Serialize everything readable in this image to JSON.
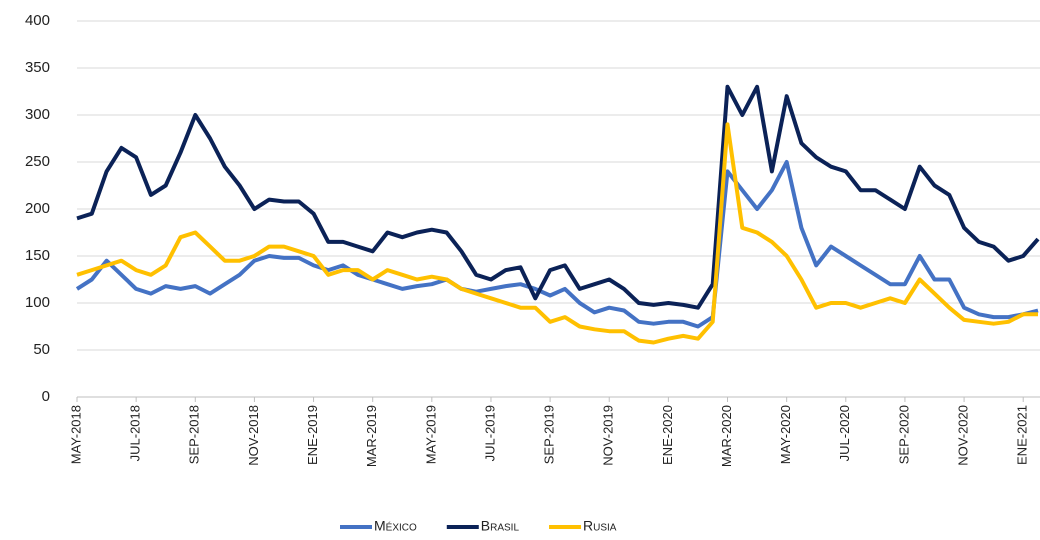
{
  "chart_data": {
    "type": "line",
    "categories": [
      "MAY-2018",
      null,
      null,
      null,
      "JUL-2018",
      null,
      null,
      null,
      "SEP-2018",
      null,
      null,
      null,
      "NOV-2018",
      null,
      null,
      null,
      "ENE-2019",
      null,
      null,
      null,
      "MAR-2019",
      null,
      null,
      null,
      "MAY-2019",
      null,
      null,
      null,
      "JUL-2019",
      null,
      null,
      null,
      "SEP-2019",
      null,
      null,
      null,
      "NOV-2019",
      null,
      null,
      null,
      "ENE-2020",
      null,
      null,
      null,
      "MAR-2020",
      null,
      null,
      null,
      "MAY-2020",
      null,
      null,
      null,
      "JUL-2020",
      null,
      null,
      null,
      "SEP-2020",
      null,
      null,
      null,
      "NOV-2020",
      null,
      null,
      null,
      "ENE-2021",
      null
    ],
    "series": [
      {
        "name": "México",
        "color": "#4472c4",
        "values": [
          115,
          125,
          145,
          130,
          115,
          110,
          118,
          115,
          118,
          110,
          120,
          130,
          145,
          150,
          148,
          148,
          140,
          135,
          140,
          130,
          125,
          120,
          115,
          118,
          120,
          125,
          115,
          112,
          115,
          118,
          120,
          115,
          108,
          115,
          100,
          90,
          95,
          92,
          80,
          78,
          80,
          80,
          75,
          85,
          240,
          220,
          200,
          220,
          250,
          180,
          140,
          160,
          150,
          140,
          130,
          120,
          120,
          150,
          125,
          125,
          95,
          88,
          85,
          85,
          88,
          92
        ]
      },
      {
        "name": "Brasil",
        "color": "#0b2257",
        "values": [
          190,
          195,
          240,
          265,
          255,
          215,
          225,
          260,
          300,
          275,
          245,
          225,
          200,
          210,
          208,
          208,
          195,
          165,
          165,
          160,
          155,
          175,
          170,
          175,
          178,
          175,
          155,
          130,
          125,
          135,
          138,
          105,
          135,
          140,
          115,
          120,
          125,
          115,
          100,
          98,
          100,
          98,
          95,
          120,
          330,
          300,
          330,
          240,
          320,
          270,
          255,
          245,
          240,
          220,
          220,
          210,
          200,
          245,
          225,
          215,
          180,
          165,
          160,
          145,
          150,
          168
        ]
      },
      {
        "name": "Rusia",
        "color": "#ffc000",
        "values": [
          130,
          135,
          140,
          145,
          135,
          130,
          140,
          170,
          175,
          160,
          145,
          145,
          150,
          160,
          160,
          155,
          150,
          130,
          135,
          135,
          125,
          135,
          130,
          125,
          128,
          125,
          115,
          110,
          105,
          100,
          95,
          95,
          80,
          85,
          75,
          72,
          70,
          70,
          60,
          58,
          62,
          65,
          62,
          80,
          290,
          180,
          175,
          165,
          150,
          125,
          95,
          100,
          100,
          95,
          100,
          105,
          100,
          125,
          110,
          95,
          82,
          80,
          78,
          80,
          88,
          88
        ]
      }
    ],
    "ylim": [
      0,
      400
    ],
    "yticks": [
      0,
      50,
      100,
      150,
      200,
      250,
      300,
      350,
      400
    ],
    "grid": true,
    "legend": "bottom"
  }
}
